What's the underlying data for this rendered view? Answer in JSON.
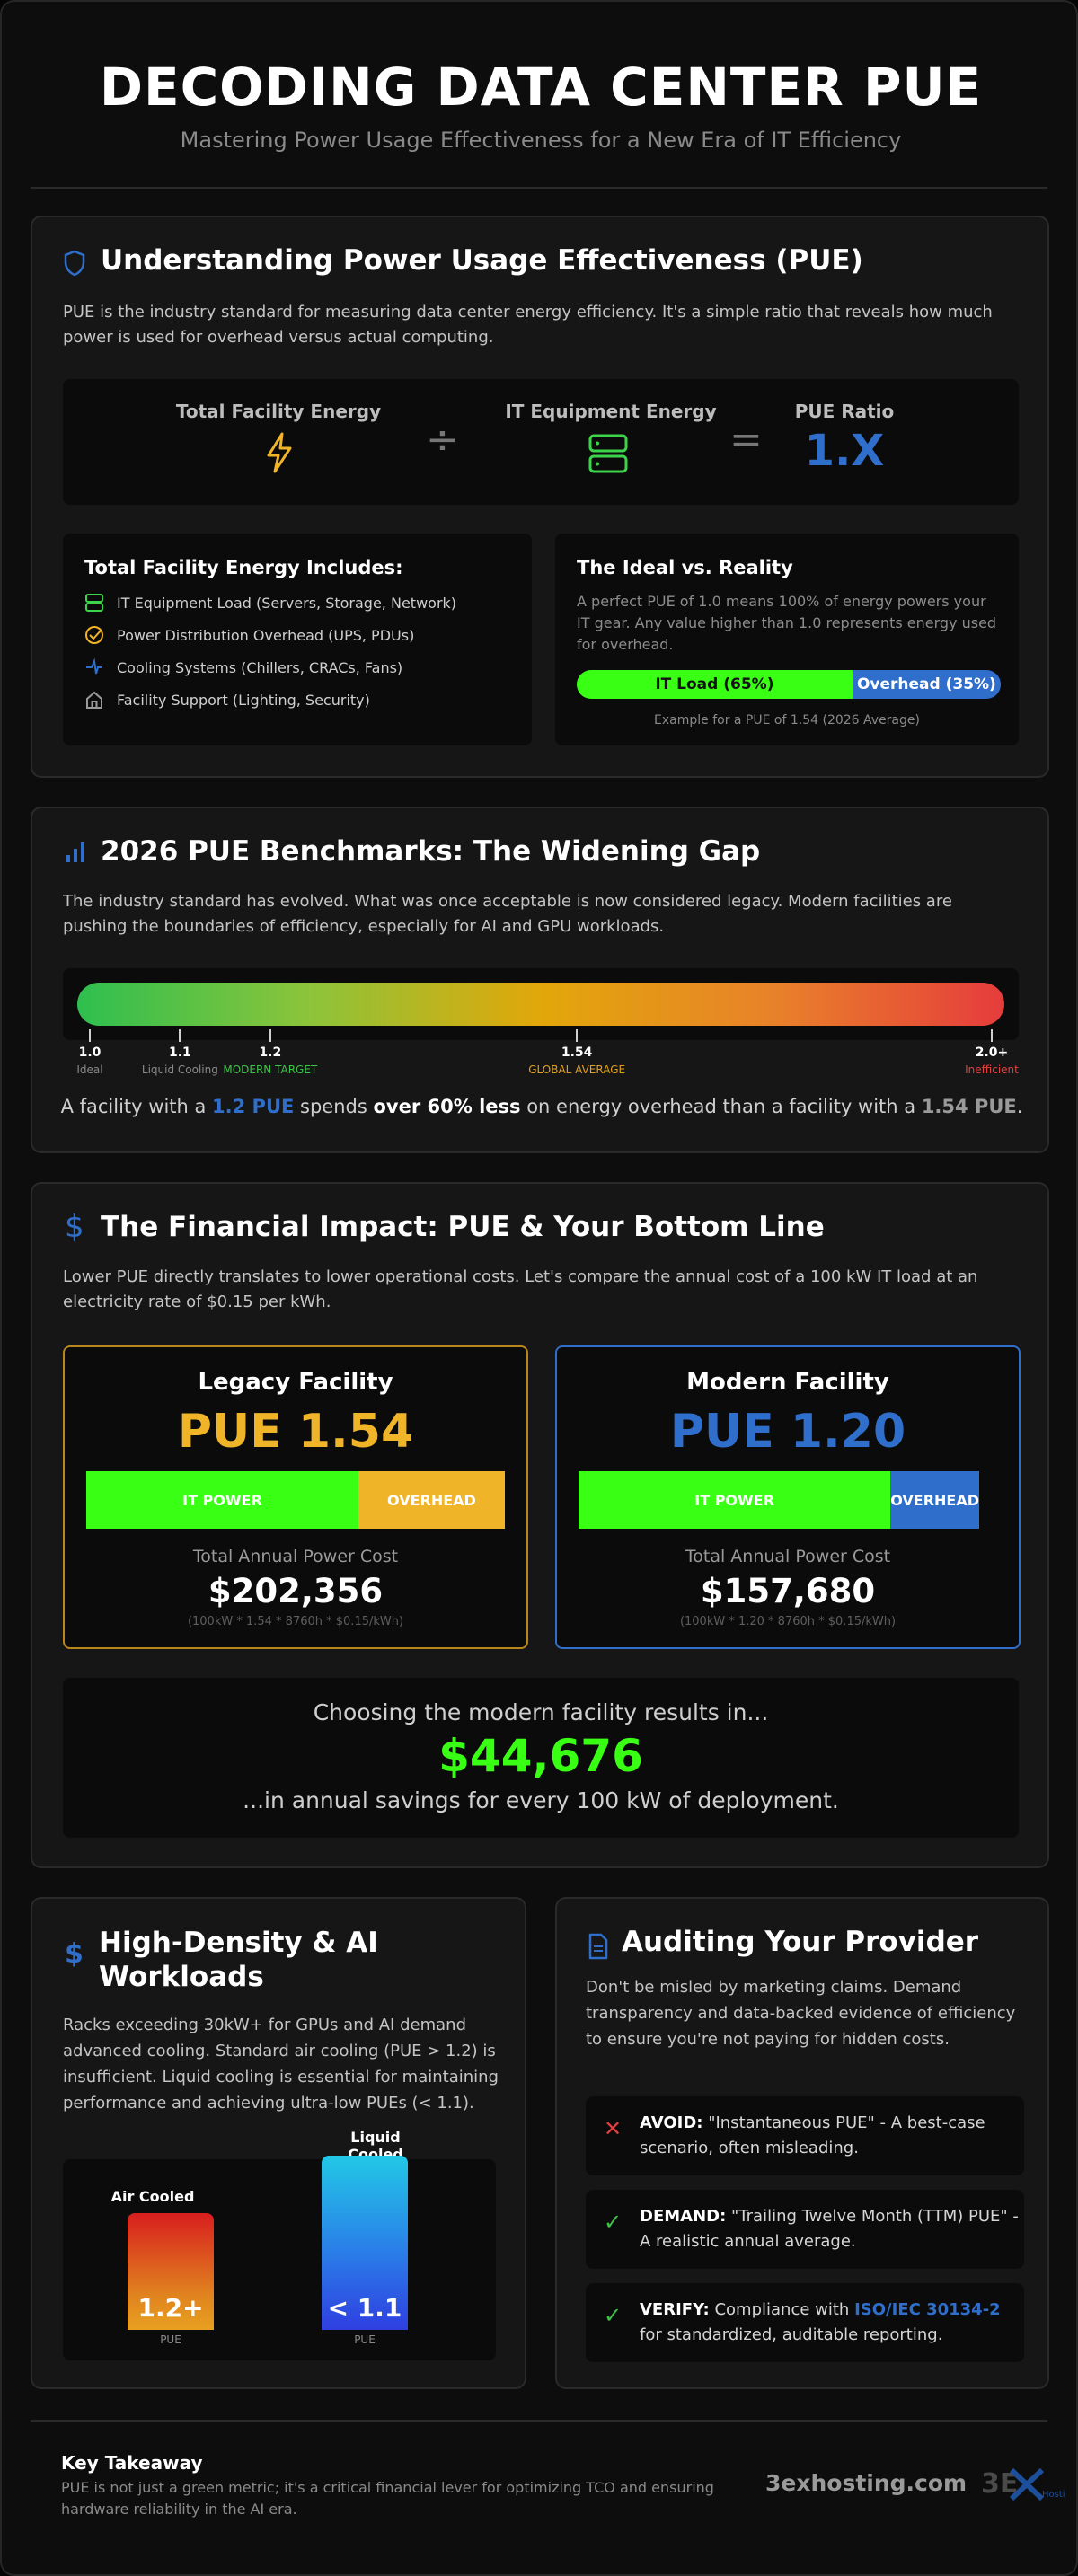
{
  "header": {
    "title": "DECODING DATA CENTER PUE",
    "subtitle": "Mastering Power Usage Effectiveness for a New Era of IT Efficiency"
  },
  "understanding": {
    "title": "Understanding Power Usage Effectiveness (PUE)",
    "intro": "PUE is the industry standard for measuring data center energy efficiency. It's a simple ratio that reveals how much power is used for overhead versus actual computing.",
    "formula": {
      "left_label": "Total Facility Energy",
      "divide": "÷",
      "middle_label": "IT Equipment Energy",
      "equals": "=",
      "right_label": "PUE Ratio",
      "ratio": "1.X"
    },
    "includes": {
      "title": "Total Facility Energy Includes:",
      "items": [
        {
          "icon": "server-icon",
          "label": "IT Equipment Load (Servers, Storage, Network)"
        },
        {
          "icon": "check-circle-icon",
          "label": "Power Distribution Overhead (UPS, PDUs)"
        },
        {
          "icon": "fan-icon",
          "label": "Cooling Systems (Chillers, CRACs, Fans)"
        },
        {
          "icon": "building-icon",
          "label": "Facility Support (Lighting, Security)"
        }
      ]
    },
    "ideal": {
      "title": "The Ideal vs. Reality",
      "text": "A perfect PUE of 1.0 means 100% of energy powers your IT gear. Any value higher than 1.0 represents energy used for overhead.",
      "bar_it_label": "IT Load (65%)",
      "bar_it_fraction": 0.65,
      "bar_overhead_label": "Overhead (35%)",
      "caption": "Example for a PUE of 1.54 (2026 Average)"
    }
  },
  "benchmarks": {
    "title": "2026 PUE Benchmarks: The Widening Gap",
    "intro": "The industry standard has evolved. What was once acceptable is now considered legacy. Modern facilities are pushing the boundaries of efficiency, especially for AI and GPU workloads.",
    "scale_min": 1.0,
    "scale_max": 2.0,
    "markers": [
      {
        "value": 1.0,
        "label": "1.0",
        "sub": "Ideal",
        "color": "#8a8a8a"
      },
      {
        "value": 1.1,
        "label": "1.1",
        "sub": "Liquid Cooling",
        "color": "#8a8a8a"
      },
      {
        "value": 1.2,
        "label": "1.2",
        "sub": "MODERN TARGET",
        "color": "#3fc24a"
      },
      {
        "value": 1.54,
        "label": "1.54",
        "sub": "GLOBAL AVERAGE",
        "color": "#e0a020"
      },
      {
        "value": 2.0,
        "label": "2.0+",
        "sub": "Inefficient",
        "color": "#e04040"
      }
    ],
    "statement": {
      "p1": "A facility with a ",
      "highlight1": "1.2 PUE",
      "p2": " spends ",
      "bold": "over 60% less",
      "p3": " on energy overhead than a facility with a ",
      "highlight2": "1.54 PUE",
      "p4": "."
    }
  },
  "financial": {
    "title": "The Financial Impact: PUE & Your Bottom Line",
    "intro": "Lower PUE directly translates to lower operational costs. Let's compare the annual cost of a 100 kW IT load at an electricity rate of $0.15 per kWh.",
    "legacy": {
      "name": "Legacy Facility",
      "pue": "PUE 1.54",
      "it_label": "IT POWER",
      "overhead_label": "OVERHEAD",
      "it_fraction": 0.65,
      "cost_label": "Total Annual Power Cost",
      "cost": "$202,356",
      "formula": "(100kW * 1.54 * 8760h * $0.15/kWh)",
      "color": "#f0b429"
    },
    "modern": {
      "name": "Modern Facility",
      "pue": "PUE 1.20",
      "it_label": "IT POWER",
      "overhead_label": "OVERHEAD",
      "it_fraction": 0.83,
      "cost_label": "Total Annual Power Cost",
      "cost": "$157,680",
      "formula": "(100kW * 1.20 * 8760h * $0.15/kWh)",
      "color": "#2f6fcb"
    },
    "savings": {
      "lead": "Choosing the modern facility results in...",
      "amount": "$44,676",
      "tail": "...in annual savings for every 100 kW of deployment."
    }
  },
  "ai": {
    "title_line1": "High-Density & AI",
    "title_line2": "Workloads",
    "text": "Racks exceeding 30kW+ for GPUs and AI demand advanced cooling. Standard air cooling (PUE > 1.2) is insufficient. Liquid cooling is essential for maintaining performance and achieving ultra-low PUEs (< 1.1).",
    "air": {
      "label": "Air Cooled",
      "value": "1.2+",
      "unit": "PUE"
    },
    "liquid": {
      "label": "Liquid Cooled",
      "value": "< 1.1",
      "unit": "PUE"
    }
  },
  "audit": {
    "title": "Auditing Your Provider",
    "intro": "Don't be misled by marketing claims. Demand transparency and data-backed evidence of efficiency to ensure you're not paying for hidden costs.",
    "items": [
      {
        "icon": "x-icon",
        "key": "AVOID:",
        "text": " \"Instantaneous PUE\" - A best-case scenario, often misleading."
      },
      {
        "icon": "check-icon",
        "key": "DEMAND:",
        "text": " \"Trailing Twelve Month (TTM) PUE\" - A realistic annual average."
      },
      {
        "icon": "check-icon",
        "key": "VERIFY:",
        "text": " Compliance with ",
        "link": "ISO/IEC 30134-2",
        "tail": " for standardized, auditable reporting."
      }
    ]
  },
  "footer": {
    "title": "Key Takeaway",
    "text": "PUE is not just a green metric; it's a critical financial lever for optimizing TCO and ensuring hardware reliability in the AI era.",
    "brand": "3exhosting.com",
    "logo_text": "3E",
    "logo_tiny": "Hosti"
  }
}
